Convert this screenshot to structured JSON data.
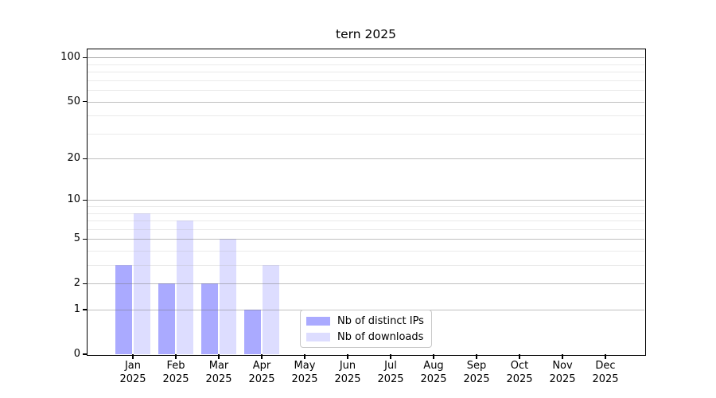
{
  "chart_data": {
    "type": "bar",
    "title": "tern 2025",
    "categories": [
      "Jan",
      "Feb",
      "Mar",
      "Apr",
      "May",
      "Jun",
      "Jul",
      "Aug",
      "Sep",
      "Oct",
      "Nov",
      "Dec"
    ],
    "category_year": "2025",
    "series": [
      {
        "name": "Nb of distinct IPs",
        "color": "#aaaaff",
        "values": [
          3,
          2,
          2,
          1,
          0,
          0,
          0,
          0,
          0,
          0,
          0,
          0
        ]
      },
      {
        "name": "Nb of downloads",
        "color": "#ddddff",
        "values": [
          8,
          7,
          5,
          3,
          0,
          0,
          0,
          0,
          0,
          0,
          0,
          0
        ]
      }
    ],
    "y_axis": {
      "scale": "log10(1+value)",
      "tick_values": [
        0,
        1,
        2,
        5,
        10,
        20,
        50,
        100
      ],
      "tick_labels": [
        "0",
        "1",
        "2",
        "5",
        "10",
        "20",
        "50",
        "100"
      ],
      "minor_gridline_values": [
        3,
        4,
        6,
        7,
        8,
        9,
        30,
        40,
        60,
        70,
        80,
        90
      ],
      "top_value": 114
    },
    "grid": "horizontal",
    "legend_position": "inside-bottom-center",
    "colors": {
      "axis": "#000000",
      "grid_major": "rgba(115,115,115,0.45)",
      "grid_major_top": "rgba(115,115,115,0.62)",
      "grid_minor": "rgba(180,180,180,0.28)",
      "legend_border": "#c8c8c8",
      "background": "#ffffff"
    }
  }
}
